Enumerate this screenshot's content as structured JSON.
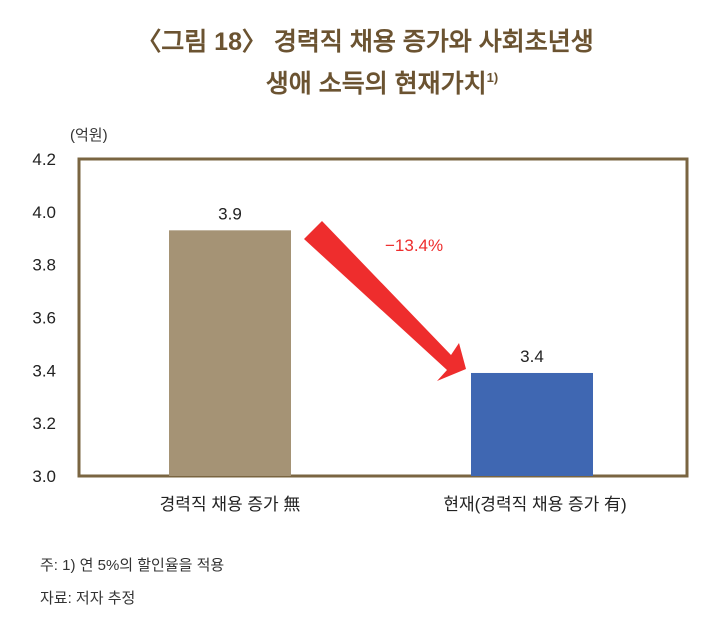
{
  "chart_data": {
    "type": "bar",
    "title_line1": "〈그림 18〉 경력직 채용 증가와 사회초년생",
    "title_line2": "생애 소득의 현재가치",
    "title_sup": "1)",
    "unit": "(억원)",
    "categories": [
      "경력직 채용 증가 無",
      "현재(경력직 채용 증가 有)"
    ],
    "values": [
      3.93,
      3.39
    ],
    "data_labels": [
      "3.9",
      "3.4"
    ],
    "bar_colors": [
      "#a59375",
      "#3f67b2"
    ],
    "ylim": [
      3.0,
      4.2
    ],
    "yticks": [
      "3.0",
      "3.2",
      "3.4",
      "3.6",
      "3.8",
      "4.0",
      "4.2"
    ],
    "annotation": "−13.4%",
    "annotation_color": "#ee2d2d",
    "frame_color": "#7a6541",
    "grid": false
  },
  "notes": [
    "주: 1) 연 5%의 할인율을 적용",
    "자료: 저자 추정"
  ]
}
